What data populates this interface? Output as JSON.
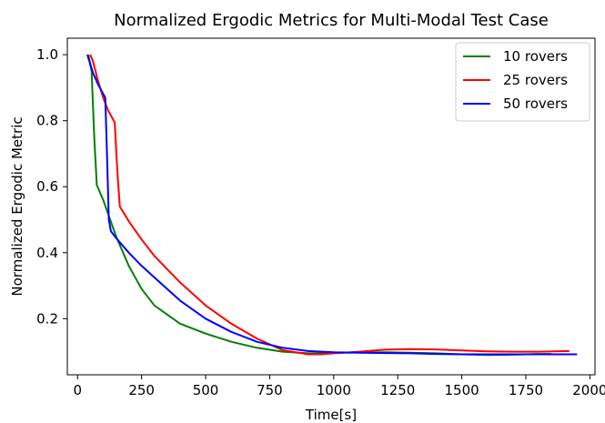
{
  "chart_data": {
    "type": "line",
    "title": "Normalized Ergodic Metrics for Multi-Modal Test Case",
    "xlabel": "Time[s]",
    "ylabel": "Normalized Ergodic Metric",
    "xlim": [
      -40,
      2020
    ],
    "ylim": [
      0.03,
      1.05
    ],
    "xticks": [
      0,
      250,
      500,
      750,
      1000,
      1250,
      1500,
      1750,
      2000
    ],
    "yticks": [
      0.2,
      0.4,
      0.6,
      0.8,
      1.0
    ],
    "xtick_labels": [
      "0",
      "250",
      "500",
      "750",
      "1000",
      "1250",
      "1500",
      "1750",
      "2000"
    ],
    "ytick_labels": [
      "0.2",
      "0.4",
      "0.6",
      "0.8",
      "1.0"
    ],
    "grid": false,
    "legend_position": "top-right",
    "series": [
      {
        "name": "10 rovers",
        "color": "#008000",
        "x": [
          42,
          55,
          65,
          75,
          100,
          150,
          200,
          250,
          300,
          400,
          500,
          600,
          700,
          800,
          900,
          1000,
          1100,
          1200,
          1300,
          1400,
          1500,
          1600,
          1700,
          1800,
          1850
        ],
        "y": [
          1.0,
          0.95,
          0.75,
          0.605,
          0.56,
          0.45,
          0.36,
          0.29,
          0.24,
          0.185,
          0.155,
          0.13,
          0.112,
          0.1,
          0.095,
          0.096,
          0.098,
          0.098,
          0.097,
          0.095,
          0.092,
          0.09,
          0.091,
          0.093,
          0.093
        ]
      },
      {
        "name": "25 rovers",
        "color": "#ff0000",
        "x": [
          50,
          60,
          80,
          100,
          120,
          145,
          155,
          165,
          200,
          250,
          300,
          400,
          500,
          600,
          700,
          800,
          900,
          950,
          1000,
          1100,
          1200,
          1300,
          1400,
          1500,
          1600,
          1700,
          1800,
          1920
        ],
        "y": [
          1.0,
          0.98,
          0.92,
          0.87,
          0.83,
          0.795,
          0.65,
          0.54,
          0.495,
          0.44,
          0.39,
          0.31,
          0.24,
          0.185,
          0.14,
          0.105,
          0.092,
          0.092,
          0.095,
          0.1,
          0.106,
          0.108,
          0.107,
          0.104,
          0.101,
          0.1,
          0.1,
          0.102
        ]
      },
      {
        "name": "50 rovers",
        "color": "#0000ff",
        "x": [
          38,
          60,
          80,
          108,
          115,
          122,
          130,
          150,
          200,
          250,
          300,
          400,
          500,
          600,
          700,
          800,
          900,
          1000,
          1100,
          1200,
          1300,
          1400,
          1500,
          1600,
          1700,
          1800,
          1900,
          1950
        ],
        "y": [
          1.0,
          0.945,
          0.91,
          0.87,
          0.7,
          0.5,
          0.465,
          0.445,
          0.4,
          0.36,
          0.325,
          0.255,
          0.2,
          0.16,
          0.13,
          0.112,
          0.102,
          0.098,
          0.097,
          0.096,
          0.095,
          0.093,
          0.092,
          0.092,
          0.092,
          0.092,
          0.092,
          0.092
        ]
      }
    ]
  }
}
